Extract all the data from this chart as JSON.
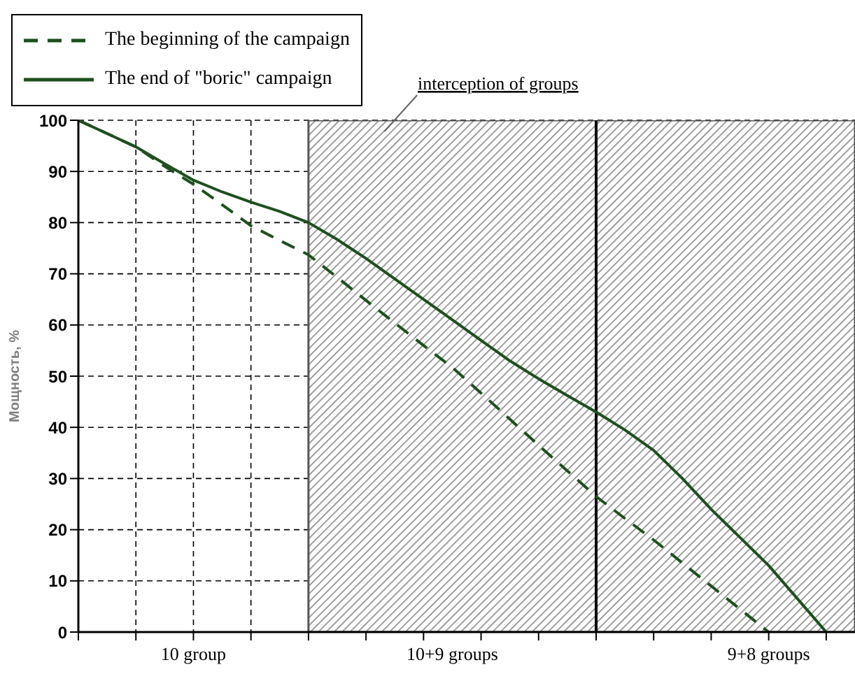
{
  "chart_data": {
    "type": "line",
    "ylabel": "Мощность, %",
    "categories": [
      null,
      null,
      null,
      null,
      "10 group",
      null,
      null,
      null,
      null,
      null,
      null,
      null,
      null,
      "10+9 groups",
      null,
      null,
      null,
      null,
      null,
      null,
      null,
      null,
      null,
      null,
      "9+8 groups",
      null,
      null,
      null
    ],
    "series": [
      {
        "name": "The beginning of the campaign",
        "color": "#1f4f1f",
        "line_style": "dashed",
        "values": [
          100,
          97.4,
          94.8,
          91,
          87.5,
          83.5,
          79.4,
          76.5,
          73.7,
          69.3,
          64.8,
          60.4,
          56,
          51.7,
          46.7,
          41.6,
          36.5,
          31.5,
          26.5,
          22.2,
          18,
          13.5,
          9,
          4.5,
          0,
          null,
          null,
          null
        ]
      },
      {
        "name": "The end of \"boric\" campaign",
        "color": "#1f4f1f",
        "line_style": "solid",
        "values": [
          100,
          97.4,
          94.8,
          91.5,
          88.3,
          86,
          84,
          82.2,
          80,
          76.7,
          73,
          69,
          65,
          61,
          57,
          53,
          49.5,
          46.2,
          43,
          39.5,
          35.5,
          30,
          24,
          18.5,
          13,
          6.5,
          0,
          null
        ]
      }
    ],
    "ylim": [
      0,
      100
    ],
    "yticks": [
      0,
      10,
      20,
      30,
      40,
      50,
      60,
      70,
      80,
      90,
      100
    ],
    "annotations": [
      "interception of groups"
    ],
    "grid": true,
    "legend": "top left",
    "marker": "none"
  }
}
